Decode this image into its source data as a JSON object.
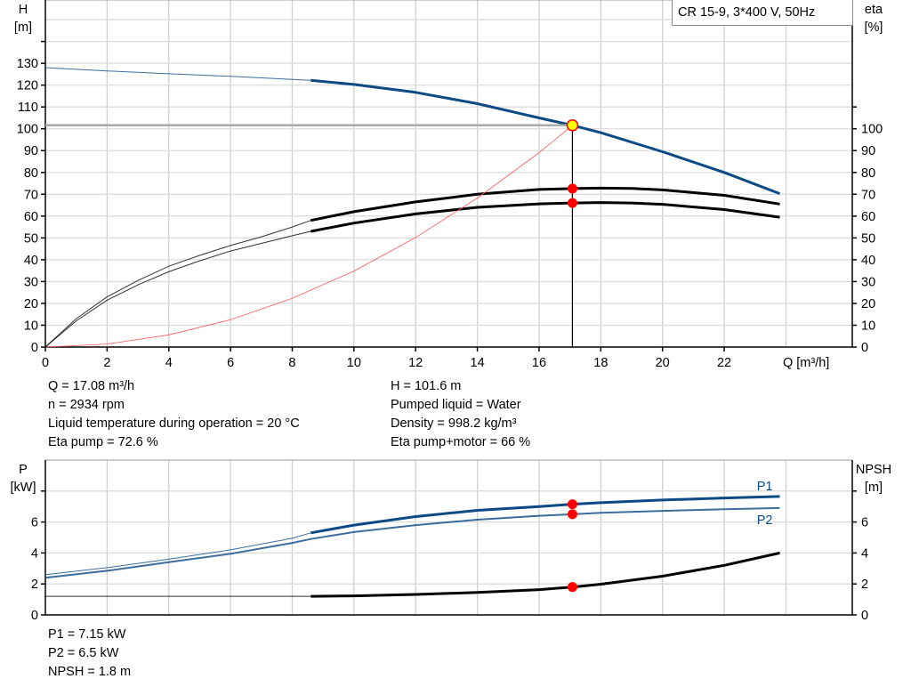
{
  "title_box": "CR 15-9, 3*400 V, 50Hz",
  "chart_data": [
    {
      "type": "line",
      "title": "",
      "xlabel": "Q [m³/h]",
      "ylabel_left": {
        "name": "H",
        "unit": "[m]"
      },
      "ylabel_right": {
        "name": "eta",
        "unit": "[%]"
      },
      "xlim": [
        0,
        26.15
      ],
      "ylim": [
        0,
        159
      ],
      "x_ticks": [
        0,
        2,
        4,
        6,
        8,
        10,
        12,
        14,
        16,
        18,
        20,
        22
      ],
      "y_ticks_left": [
        0,
        10,
        20,
        30,
        40,
        50,
        60,
        70,
        80,
        90,
        100,
        110,
        120,
        130
      ],
      "y_ticks_right": [
        0,
        10,
        20,
        30,
        40,
        50,
        60,
        70,
        80,
        90,
        100
      ],
      "grid": true,
      "operating_point": {
        "Q": 17.08,
        "H": 101.6,
        "eta_pump": 72.6,
        "eta_total": 66
      },
      "series": [
        {
          "key": "H",
          "color": "#0b4a84",
          "thick_from": 8.6,
          "x": [
            0,
            2,
            4,
            6,
            8,
            8.6,
            10,
            12,
            14,
            16,
            17.08,
            18,
            20,
            22,
            23.8
          ],
          "y": [
            128,
            126.5,
            125.2,
            124,
            122.6,
            122.2,
            120.3,
            116.7,
            111.5,
            105,
            101.6,
            98.2,
            89.5,
            80,
            70.3
          ]
        },
        {
          "key": "eta_pump",
          "color": "#000000",
          "thick_from": 8.6,
          "x": [
            0,
            1,
            2,
            3,
            4,
            5,
            6,
            7,
            8,
            8.6,
            10,
            12,
            14,
            16,
            17.08,
            18,
            19,
            20,
            22,
            23.8
          ],
          "y": [
            0,
            13,
            23,
            30.5,
            37,
            42,
            46.5,
            50.5,
            55,
            58,
            62,
            66.5,
            70,
            72.2,
            72.6,
            72.8,
            72.7,
            72,
            69.5,
            65.5
          ]
        },
        {
          "key": "eta_total",
          "color": "#000000",
          "thick_from": 8.6,
          "x": [
            0,
            1,
            2,
            3,
            4,
            5,
            6,
            7,
            8,
            8.6,
            10,
            12,
            14,
            16,
            17.08,
            18,
            19,
            20,
            22,
            23.8
          ],
          "y": [
            0,
            12,
            21.5,
            28.5,
            34.5,
            39.5,
            44,
            47.5,
            51,
            53,
            56.8,
            61,
            64,
            65.6,
            66,
            66.2,
            66,
            65.4,
            63,
            59.5
          ]
        },
        {
          "key": "system",
          "color": "#ff5a5a",
          "thick_from": 99,
          "x": [
            0,
            2,
            4,
            6,
            8,
            10,
            12,
            14,
            16,
            17.08
          ],
          "y": [
            0,
            1.4,
            5.6,
            12.5,
            22.3,
            34.8,
            50.2,
            68.3,
            89.1,
            101.6
          ]
        }
      ]
    },
    {
      "type": "line",
      "title": "",
      "ylabel_left": {
        "name": "P",
        "unit": "[kW]"
      },
      "ylabel_right": {
        "name": "NPSH",
        "unit": "[m]"
      },
      "xlim": [
        0,
        26.15
      ],
      "ylim": [
        0,
        10
      ],
      "y_ticks_left": [
        0,
        2,
        4,
        6
      ],
      "y_ticks_right": [
        0,
        2,
        4,
        6
      ],
      "grid": true,
      "series": [
        {
          "name": "P1",
          "key": "P1",
          "color": "#0b4a84",
          "thick_from": 8.6,
          "x": [
            0,
            2,
            4,
            6,
            8,
            8.6,
            10,
            12,
            14,
            16,
            17.08,
            18,
            20,
            22,
            23.8
          ],
          "y": [
            2.6,
            3.05,
            3.6,
            4.2,
            4.95,
            5.3,
            5.8,
            6.35,
            6.75,
            7.0,
            7.15,
            7.25,
            7.42,
            7.55,
            7.65
          ]
        },
        {
          "name": "P2",
          "key": "P2",
          "color": "#0b4a84",
          "thick_from": 99,
          "x": [
            0,
            2,
            4,
            6,
            8,
            8.6,
            10,
            12,
            14,
            16,
            17.08,
            18,
            20,
            22,
            23.8
          ],
          "y": [
            2.4,
            2.85,
            3.4,
            3.95,
            4.65,
            4.9,
            5.35,
            5.8,
            6.15,
            6.4,
            6.5,
            6.6,
            6.72,
            6.82,
            6.9
          ]
        },
        {
          "key": "NPSH",
          "color": "#000000",
          "thick_from": 8.6,
          "x": [
            0,
            4,
            8,
            8.6,
            10,
            12,
            14,
            16,
            17.08,
            18,
            20,
            22,
            23.8
          ],
          "y": [
            1.2,
            1.2,
            1.2,
            1.2,
            1.23,
            1.32,
            1.45,
            1.63,
            1.8,
            1.98,
            2.5,
            3.2,
            4.0
          ]
        }
      ],
      "points": [
        {
          "Q": 17.08,
          "P1": 7.15
        },
        {
          "Q": 17.08,
          "P2": 6.5
        },
        {
          "Q": 17.08,
          "NPSH": 1.8
        }
      ]
    }
  ],
  "info_top_left": [
    "Q = 17.08 m³/h",
    "n = 2934 rpm",
    "Liquid temperature during operation = 20 °C",
    "Eta pump = 72.6 %"
  ],
  "info_top_right": [
    "H = 101.6 m",
    "Pumped liquid = Water",
    "Density = 998.2 kg/m³",
    "Eta pump+motor = 66 %"
  ],
  "info_bottom": [
    "P1 = 7.15 kW",
    "P2 = 6.5 kW",
    "NPSH = 1.8 m"
  ]
}
